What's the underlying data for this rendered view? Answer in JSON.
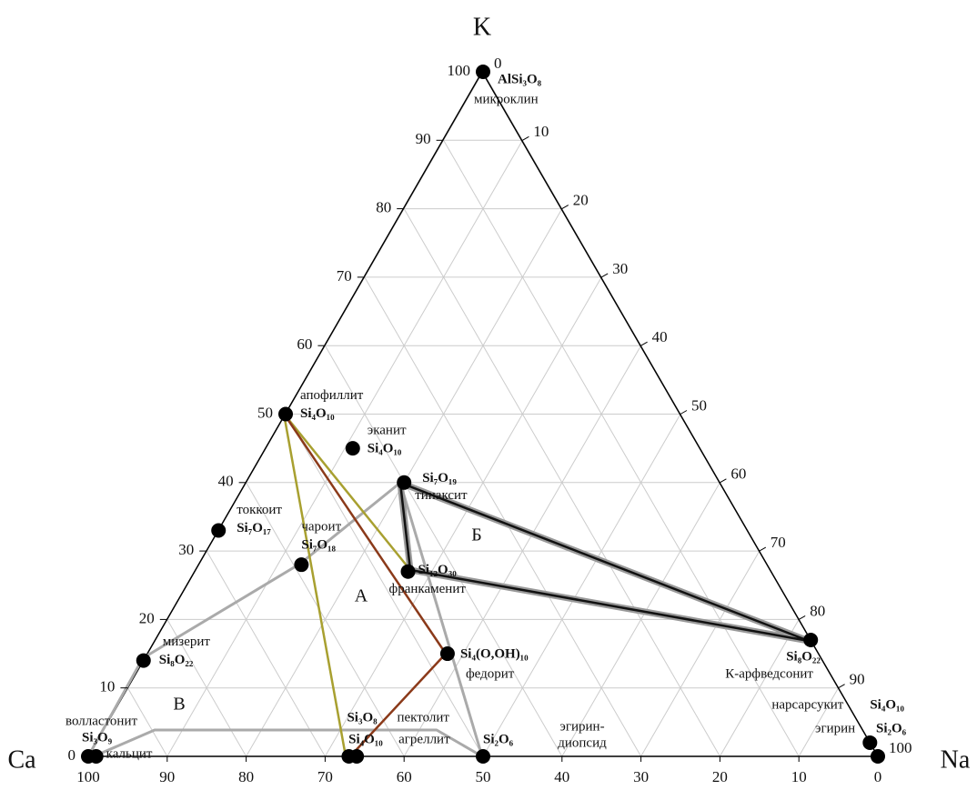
{
  "chart_data": {
    "type": "ternary",
    "axis_labels": {
      "top": "K",
      "left": "Ca",
      "right": "Na"
    },
    "grid": true,
    "kticks": [
      0,
      10,
      20,
      30,
      40,
      50,
      60,
      70,
      80,
      90,
      100
    ],
    "caticks": [
      100,
      90,
      80,
      70,
      60,
      50,
      40,
      30,
      20,
      10,
      0
    ],
    "naticks": [
      0,
      10,
      20,
      30,
      40,
      50,
      60,
      70,
      80,
      90,
      100
    ],
    "points": [
      {
        "formula": "AlSi₃O₈",
        "name": "микроклин",
        "k": 100,
        "na": 0
      },
      {
        "formula": "Si₄O₁₀",
        "name": "апофиллит",
        "k": 50,
        "na": 0
      },
      {
        "formula": "Si₄O₁₀",
        "name": "эканит",
        "k": 45,
        "na": 11
      },
      {
        "formula": "Si₇O₁₉",
        "name": "тинаксит",
        "k": 40,
        "na": 20
      },
      {
        "formula": "Si₇O₁₇",
        "name": "токкоит",
        "k": 33,
        "na": 0
      },
      {
        "formula": "Si₇O₁₈",
        "name": "чароит",
        "k": 28,
        "na": 13
      },
      {
        "formula": "Si₁₂O₃₀",
        "name": "франкаменит",
        "k": 27,
        "na": 27
      },
      {
        "formula": "Si₈O₂₂",
        "name": "мизерит",
        "k": 14,
        "na": 0
      },
      {
        "formula": "Si₄(O,OH)₁₀",
        "name": "федорит",
        "k": 15,
        "na": 38
      },
      {
        "formula": "Si₈O₂₂",
        "name": "К-арфведсонит",
        "k": 17,
        "na": 83
      },
      {
        "formula": "Si₃O₉",
        "name": "волластонит",
        "k": 0,
        "na": 0
      },
      {
        "name": "кальцит",
        "k": 0,
        "na": 1
      },
      {
        "formula": "Si₃O₈",
        "name": "пектолит",
        "k": 0,
        "na": 33
      },
      {
        "formula": "Si₄O₁₀",
        "name": "агреллит",
        "k": 0,
        "na": 34
      },
      {
        "formula": "Si₂O₆",
        "k": 0,
        "na": 50
      },
      {
        "formula": "Si₄O₁₀",
        "name": "нарсарсукит",
        "k": 2,
        "na": 98
      },
      {
        "formula": "Si₂O₆",
        "name": "эгирин",
        "k": 0,
        "na": 100
      }
    ],
    "annotation": [
      "эгирин-",
      "диопсид"
    ],
    "fields": [
      "А",
      "Б",
      "В"
    ]
  }
}
